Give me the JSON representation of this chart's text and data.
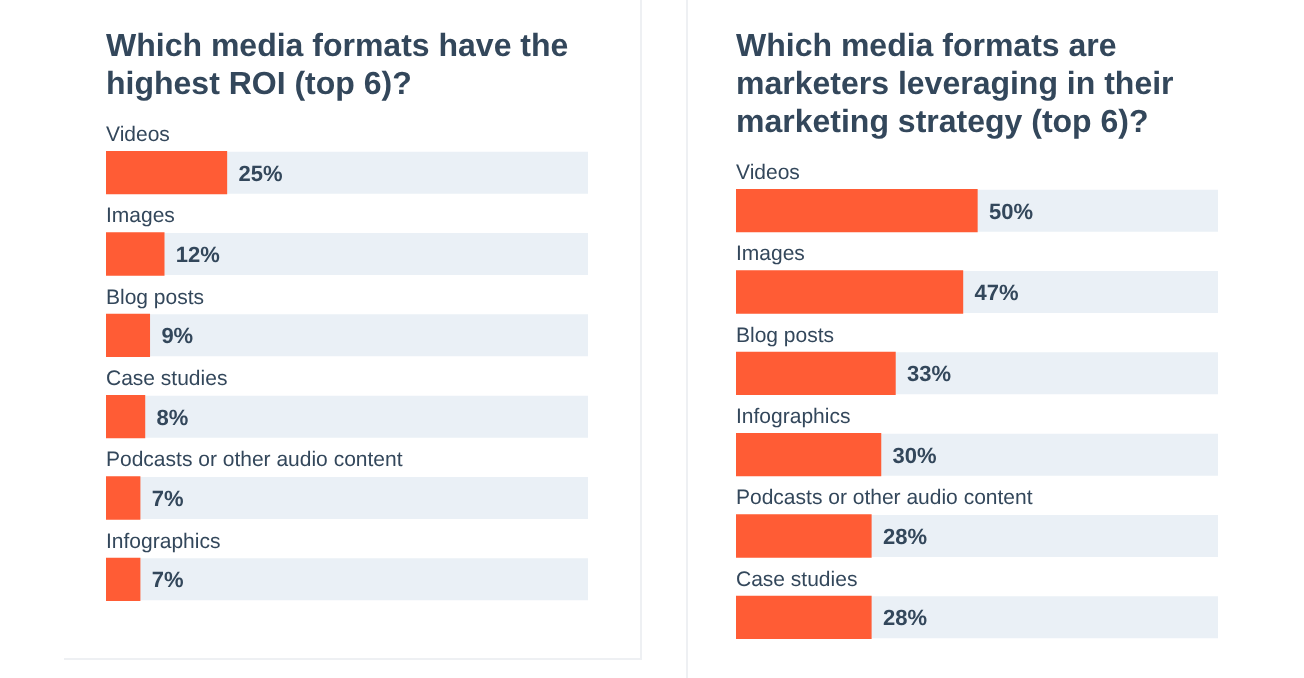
{
  "chart_data": [
    {
      "type": "bar",
      "orientation": "horizontal",
      "title": "Which media formats have the highest ROI (top 6)?",
      "categories": [
        "Videos",
        "Images",
        "Blog posts",
        "Case studies",
        "Podcasts or other audio content",
        "Infographics"
      ],
      "values": [
        25,
        12,
        9,
        8,
        7,
        7
      ],
      "value_labels": [
        "25%",
        "12%",
        "9%",
        "8%",
        "7%",
        "7%"
      ],
      "color": "#ff5c35",
      "legend": false
    },
    {
      "type": "bar",
      "orientation": "horizontal",
      "title": "Which media formats are marketers leveraging in their marketing strategy (top 6)?",
      "categories": [
        "Videos",
        "Images",
        "Blog posts",
        "Infographics",
        "Podcasts or other audio content",
        "Case studies"
      ],
      "values": [
        50,
        47,
        33,
        30,
        28,
        28
      ],
      "value_labels": [
        "50%",
        "47%",
        "33%",
        "30%",
        "28%",
        "28%"
      ],
      "color": "#ff5c35",
      "legend": false
    }
  ]
}
